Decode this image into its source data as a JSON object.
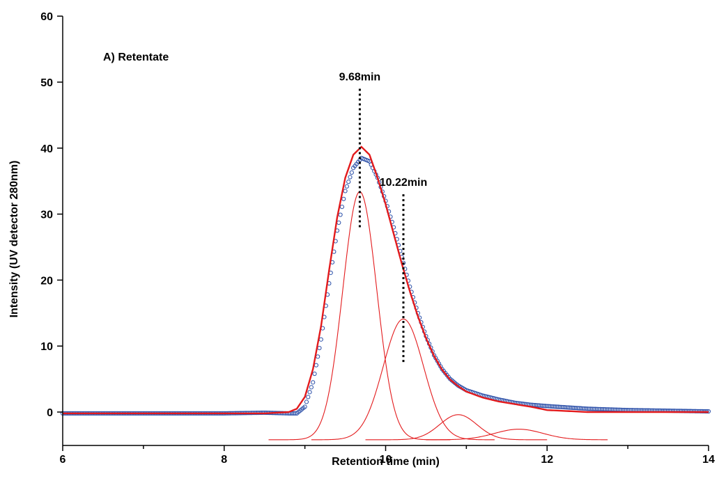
{
  "chart_data": {
    "type": "line",
    "title": "",
    "panel_label": "A) Retentate",
    "xlabel": "Retention time (min)",
    "ylabel": "Intensity (UV detector 280nm)",
    "xlim": [
      6,
      14
    ],
    "ylim": [
      -4,
      60
    ],
    "xticks": [
      6,
      8,
      10,
      12,
      14
    ],
    "yticks": [
      0,
      10,
      20,
      30,
      40,
      50,
      60
    ],
    "grid": false,
    "legend": "none",
    "baseline_offset": -4.2,
    "annotations": [
      {
        "text": "9.68min",
        "x": 9.68,
        "y_top": 49,
        "y_bottom": 28
      },
      {
        "text": "10.22min",
        "x": 10.22,
        "y_top": 33,
        "y_bottom": 7.5
      }
    ],
    "colors": {
      "measured": "#2b4fa8",
      "fit": "#e31a1c",
      "annotation": "#000000"
    },
    "series": [
      {
        "style": "markers",
        "color": "#2b4fa8",
        "x": [
          6.0,
          6.5,
          7.0,
          7.5,
          8.0,
          8.5,
          8.8,
          8.9,
          9.0,
          9.1,
          9.2,
          9.3,
          9.4,
          9.5,
          9.6,
          9.7,
          9.8,
          9.9,
          10.0,
          10.1,
          10.2,
          10.3,
          10.4,
          10.5,
          10.6,
          10.7,
          10.8,
          10.9,
          11.0,
          11.2,
          11.4,
          11.6,
          11.8,
          12.0,
          12.5,
          13.0,
          13.5,
          14.0
        ],
        "y": [
          -0.2,
          -0.2,
          -0.2,
          -0.2,
          -0.2,
          -0.1,
          -0.2,
          -0.2,
          0.8,
          4.5,
          11.0,
          19.5,
          27.5,
          33.5,
          37.0,
          38.5,
          38.0,
          35.5,
          32.0,
          28.0,
          23.5,
          19.0,
          15.0,
          11.5,
          8.6,
          6.5,
          5.0,
          4.0,
          3.3,
          2.5,
          1.9,
          1.4,
          1.1,
          0.9,
          0.5,
          0.3,
          0.2,
          0.1
        ]
      },
      {
        "style": "line",
        "color": "#e31a1c",
        "x": [
          6.0,
          6.5,
          7.0,
          7.5,
          8.0,
          8.5,
          8.8,
          8.9,
          9.0,
          9.1,
          9.2,
          9.3,
          9.4,
          9.5,
          9.6,
          9.7,
          9.8,
          9.9,
          10.0,
          10.1,
          10.2,
          10.3,
          10.4,
          10.5,
          10.6,
          10.7,
          10.8,
          10.9,
          11.0,
          11.2,
          11.4,
          11.6,
          11.8,
          12.0,
          12.5,
          13.0,
          13.5,
          14.0
        ],
        "y": [
          -0.2,
          -0.2,
          -0.2,
          -0.2,
          -0.2,
          -0.2,
          0.0,
          0.5,
          2.3,
          6.5,
          13.0,
          21.5,
          29.5,
          35.5,
          39.0,
          40.2,
          39.0,
          35.5,
          31.5,
          27.0,
          22.5,
          18.3,
          14.5,
          11.2,
          8.5,
          6.4,
          4.9,
          3.9,
          3.1,
          2.2,
          1.6,
          1.2,
          0.8,
          0.3,
          0.0,
          0.0,
          0.0,
          0.0
        ]
      },
      {
        "style": "gaussian",
        "color": "#e31a1c",
        "center": 9.68,
        "height": 37.6,
        "sigma": 0.21,
        "x_range": [
          8.55,
          10.8
        ]
      },
      {
        "style": "gaussian",
        "color": "#e31a1c",
        "center": 10.22,
        "height": 18.3,
        "sigma": 0.25,
        "x_range": [
          9.08,
          11.35
        ]
      },
      {
        "style": "gaussian",
        "color": "#e31a1c",
        "center": 10.9,
        "height": 3.8,
        "sigma": 0.23,
        "x_range": [
          9.75,
          12.0
        ]
      },
      {
        "style": "gaussian",
        "color": "#e31a1c",
        "center": 11.65,
        "height": 1.6,
        "sigma": 0.3,
        "x_range": [
          10.5,
          12.75
        ]
      }
    ]
  }
}
